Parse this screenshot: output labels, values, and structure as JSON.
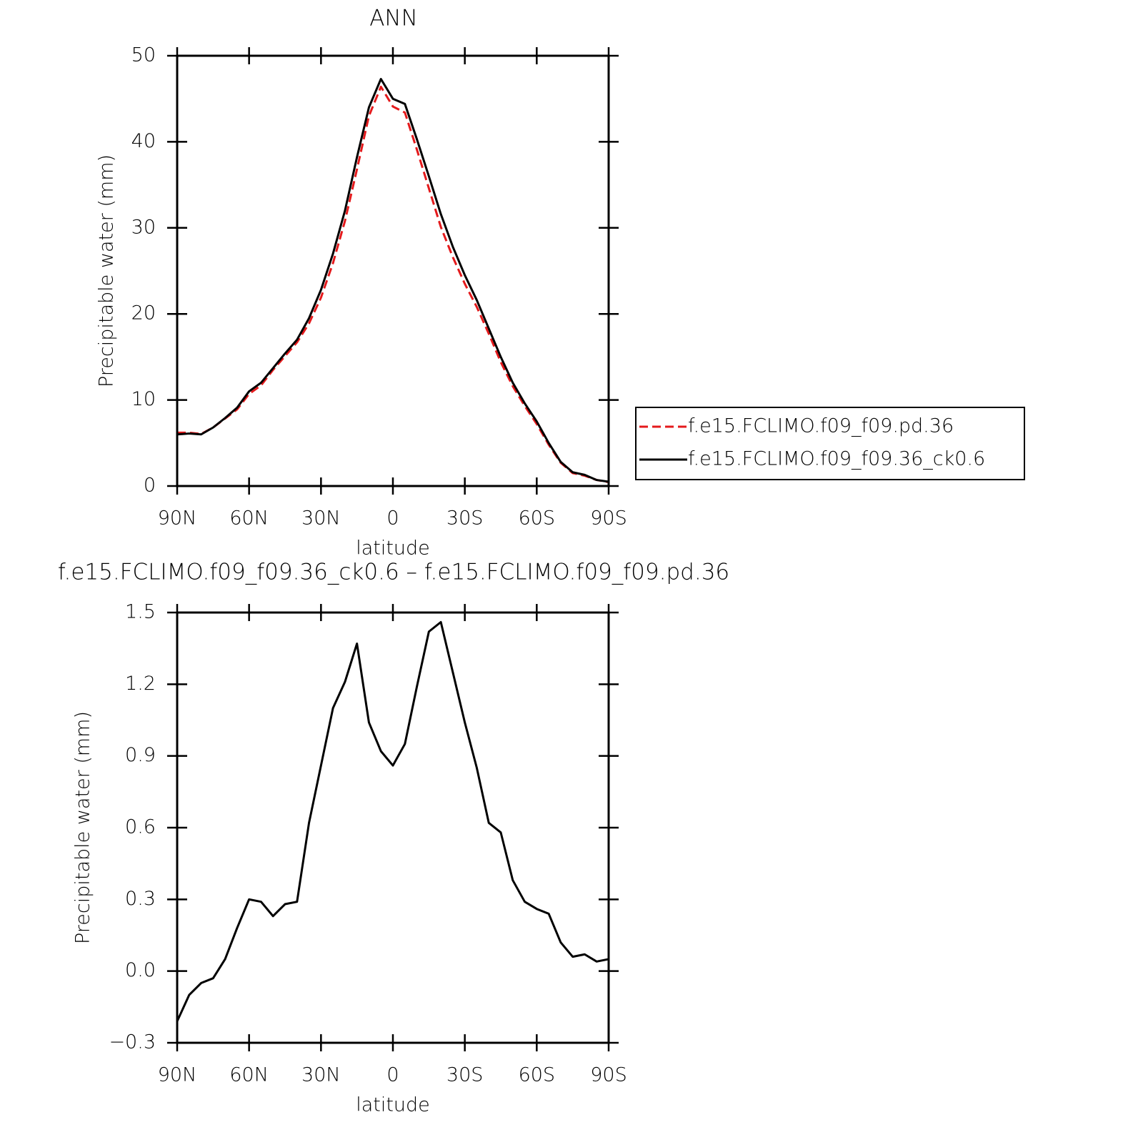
{
  "chart_data": [
    {
      "type": "line",
      "title": "ANN",
      "xlabel": "latitude",
      "ylabel": "Precipitable water (mm)",
      "x": [
        90,
        85,
        80,
        75,
        70,
        65,
        60,
        55,
        50,
        45,
        40,
        35,
        30,
        25,
        20,
        15,
        10,
        5,
        0,
        -5,
        -10,
        -15,
        -20,
        -25,
        -30,
        -35,
        -40,
        -45,
        -50,
        -55,
        -60,
        -65,
        -70,
        -75,
        -80,
        -85,
        -90
      ],
      "series": [
        {
          "name": "f.e15.FCLIMO.f09_f09.pd.36",
          "color": "#e41a1c",
          "dashed": true,
          "values": [
            6.2,
            6.2,
            6.05,
            6.8,
            7.85,
            8.9,
            10.7,
            11.7,
            13.5,
            15.1,
            16.7,
            18.9,
            21.9,
            25.9,
            30.8,
            36.8,
            43.0,
            46.4,
            44.1,
            43.4,
            39.1,
            34.6,
            30.1,
            26.6,
            23.5,
            20.8,
            17.7,
            14.4,
            11.6,
            9.3,
            7.2,
            4.8,
            2.7,
            1.5,
            1.2,
            0.7,
            0.45
          ]
        },
        {
          "name": "f.e15.FCLIMO.f09_f09.36_ck0.6",
          "color": "#000000",
          "dashed": false,
          "values": [
            6.0,
            6.1,
            6.0,
            6.8,
            7.9,
            9.1,
            11.0,
            12.0,
            13.7,
            15.4,
            17.0,
            19.5,
            22.8,
            27.0,
            32.0,
            38.2,
            44.0,
            47.3,
            45.0,
            44.4,
            40.3,
            36.0,
            31.6,
            27.8,
            24.5,
            21.6,
            18.3,
            15.0,
            12.0,
            9.6,
            7.5,
            5.0,
            2.8,
            1.6,
            1.3,
            0.7,
            0.5
          ]
        }
      ],
      "xlim": [
        90,
        -90
      ],
      "xticks": [
        {
          "value": 90,
          "label": "90N"
        },
        {
          "value": 60,
          "label": "60N"
        },
        {
          "value": 30,
          "label": "30N"
        },
        0,
        {
          "value": -30,
          "label": "30S"
        },
        {
          "value": -60,
          "label": "60S"
        },
        {
          "value": -90,
          "label": "90S"
        }
      ],
      "ylim": [
        0,
        50
      ],
      "yticks": [
        0,
        10,
        20,
        30,
        40,
        50
      ],
      "legend": "right"
    },
    {
      "type": "line",
      "title": "f.e15.FCLIMO.f09_f09.36_ck0.6 – f.e15.FCLIMO.f09_f09.pd.36",
      "xlabel": "latitude",
      "ylabel": "Precipitable water (mm)",
      "x": [
        90,
        85,
        80,
        75,
        70,
        65,
        60,
        55,
        50,
        45,
        40,
        35,
        30,
        25,
        20,
        15,
        10,
        5,
        0,
        -5,
        -10,
        -15,
        -20,
        -25,
        -30,
        -35,
        -40,
        -45,
        -50,
        -55,
        -60,
        -65,
        -70,
        -75,
        -80,
        -85,
        -90
      ],
      "color": "#000000",
      "values": [
        -0.21,
        -0.1,
        -0.05,
        -0.03,
        0.05,
        0.18,
        0.3,
        0.29,
        0.23,
        0.28,
        0.29,
        0.62,
        0.86,
        1.1,
        1.21,
        1.37,
        1.04,
        0.92,
        0.86,
        0.95,
        1.19,
        1.42,
        1.46,
        1.25,
        1.04,
        0.85,
        0.62,
        0.58,
        0.38,
        0.29,
        0.26,
        0.24,
        0.12,
        0.06,
        0.07,
        0.04,
        0.05
      ],
      "xlim": [
        90,
        -90
      ],
      "xticks": [
        {
          "value": 90,
          "label": "90N"
        },
        {
          "value": 60,
          "label": "60N"
        },
        {
          "value": 30,
          "label": "30N"
        },
        0,
        {
          "value": -30,
          "label": "30S"
        },
        {
          "value": -60,
          "label": "60S"
        },
        {
          "value": -90,
          "label": "90S"
        }
      ],
      "ylim": [
        -0.3,
        1.5
      ],
      "yticks": [
        {
          "value": -0.3,
          "label": "−0.3"
        },
        {
          "value": 0,
          "label": "0.0"
        },
        0.3,
        0.6,
        0.9,
        1.2,
        1.5
      ]
    }
  ]
}
